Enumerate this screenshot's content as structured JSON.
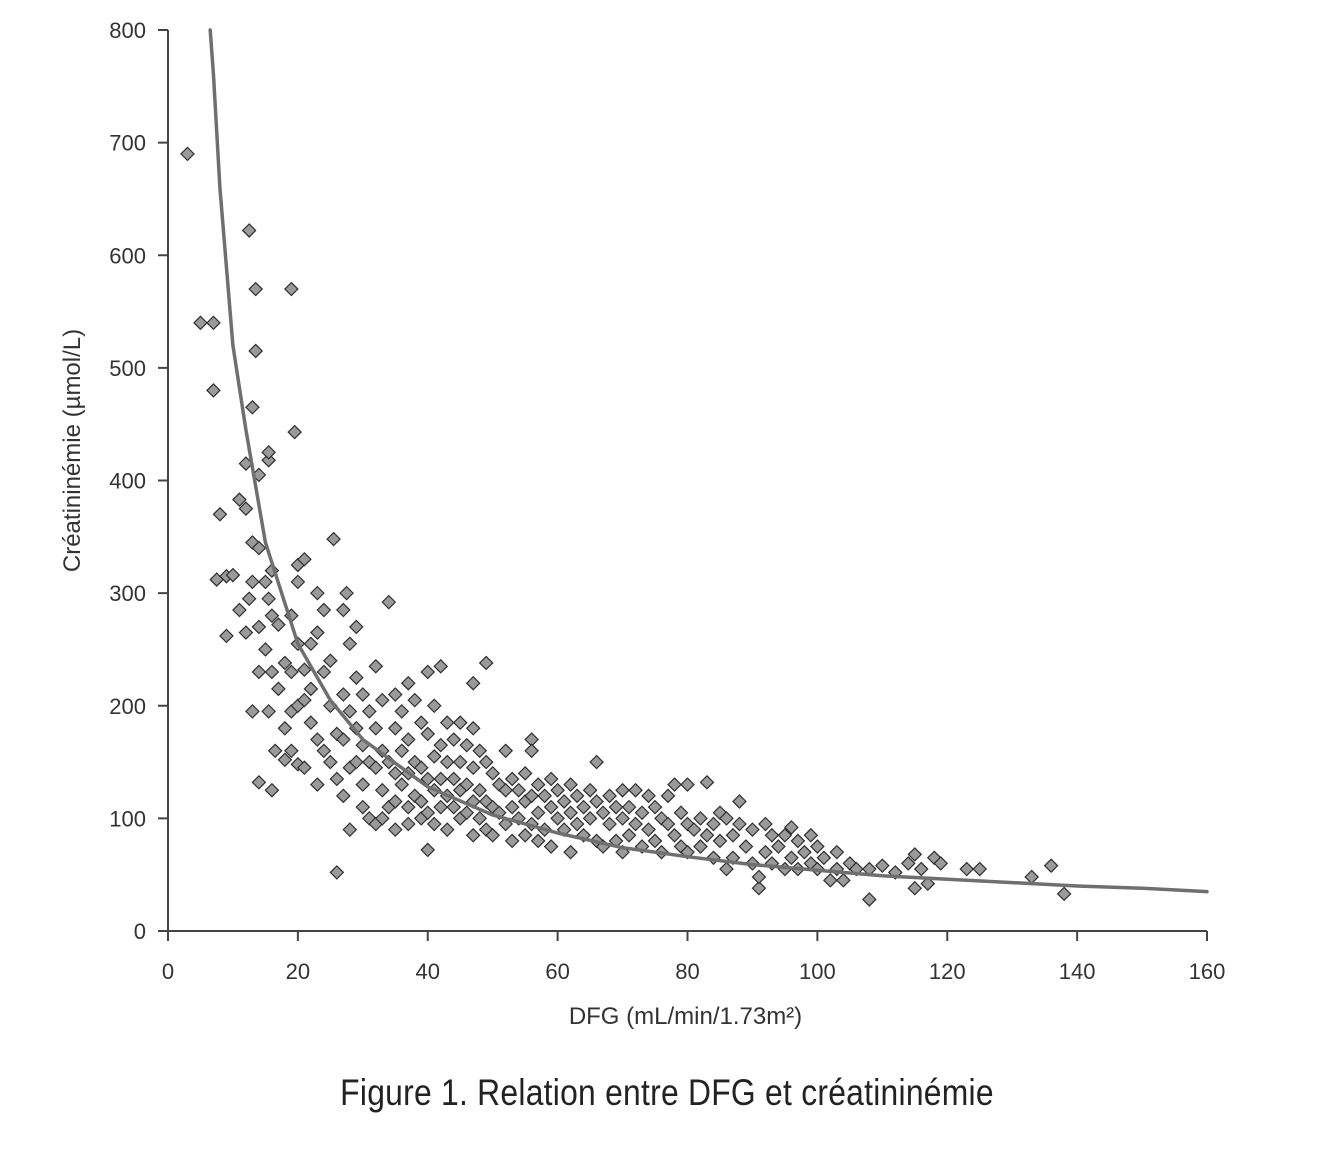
{
  "caption": "Figure 1. Relation entre DFG et créatininémie",
  "colors": {
    "marker_fill": "#9a9a9a",
    "marker_stroke": "#2f2f2f",
    "curve": "#6f6f6f",
    "axis": "#444444"
  },
  "chart_data": {
    "type": "scatter",
    "title": "",
    "xlabel": "DFG (mL/min/1.73m²)",
    "ylabel": "Créatininémie (µmol/L)",
    "xlim": [
      0,
      160
    ],
    "ylim": [
      0,
      800
    ],
    "x_ticks": [
      0,
      20,
      40,
      60,
      80,
      100,
      120,
      140,
      160
    ],
    "y_ticks": [
      0,
      100,
      200,
      300,
      400,
      500,
      600,
      700,
      800
    ],
    "grid": false,
    "legend": "none",
    "marker": "diamond",
    "points": [
      [
        3,
        690
      ],
      [
        5,
        540
      ],
      [
        7,
        540
      ],
      [
        7,
        480
      ],
      [
        7.5,
        312
      ],
      [
        8,
        370
      ],
      [
        9,
        262
      ],
      [
        9,
        315
      ],
      [
        10,
        316
      ],
      [
        11,
        285
      ],
      [
        11,
        383
      ],
      [
        12,
        375
      ],
      [
        12,
        415
      ],
      [
        12,
        265
      ],
      [
        12.5,
        295
      ],
      [
        12.5,
        622
      ],
      [
        13,
        465
      ],
      [
        13,
        345
      ],
      [
        13,
        310
      ],
      [
        13,
        195
      ],
      [
        13.5,
        515
      ],
      [
        13.5,
        570
      ],
      [
        14,
        405
      ],
      [
        14,
        340
      ],
      [
        14,
        270
      ],
      [
        14,
        230
      ],
      [
        14,
        132
      ],
      [
        15,
        250
      ],
      [
        15,
        310
      ],
      [
        15.5,
        418
      ],
      [
        15.5,
        425
      ],
      [
        15.5,
        295
      ],
      [
        15.5,
        195
      ],
      [
        16,
        320
      ],
      [
        16,
        280
      ],
      [
        16,
        230
      ],
      [
        16,
        125
      ],
      [
        16.5,
        160
      ],
      [
        17,
        272
      ],
      [
        17,
        215
      ],
      [
        18,
        238
      ],
      [
        18,
        180
      ],
      [
        18,
        152
      ],
      [
        19,
        570
      ],
      [
        19,
        280
      ],
      [
        19,
        230
      ],
      [
        19,
        195
      ],
      [
        19,
        160
      ],
      [
        19.5,
        443
      ],
      [
        20,
        325
      ],
      [
        20,
        310
      ],
      [
        20,
        255
      ],
      [
        20,
        200
      ],
      [
        20,
        148
      ],
      [
        21,
        330
      ],
      [
        21,
        232
      ],
      [
        21,
        205
      ],
      [
        21,
        145
      ],
      [
        22,
        255
      ],
      [
        22,
        215
      ],
      [
        22,
        185
      ],
      [
        23,
        300
      ],
      [
        23,
        265
      ],
      [
        23,
        170
      ],
      [
        23,
        130
      ],
      [
        24,
        285
      ],
      [
        24,
        230
      ],
      [
        24,
        160
      ],
      [
        25,
        240
      ],
      [
        25,
        200
      ],
      [
        25,
        150
      ],
      [
        25.5,
        348
      ],
      [
        26,
        52
      ],
      [
        26,
        175
      ],
      [
        26,
        135
      ],
      [
        27,
        285
      ],
      [
        27,
        210
      ],
      [
        27,
        170
      ],
      [
        27,
        120
      ],
      [
        27.5,
        300
      ],
      [
        28,
        255
      ],
      [
        28,
        90
      ],
      [
        28,
        195
      ],
      [
        28,
        145
      ],
      [
        29,
        270
      ],
      [
        29,
        225
      ],
      [
        29,
        180
      ],
      [
        29,
        150
      ],
      [
        30,
        210
      ],
      [
        30,
        165
      ],
      [
        30,
        130
      ],
      [
        30,
        110
      ],
      [
        31,
        195
      ],
      [
        31,
        150
      ],
      [
        31,
        100
      ],
      [
        32,
        235
      ],
      [
        32,
        180
      ],
      [
        32,
        145
      ],
      [
        32,
        95
      ],
      [
        33,
        205
      ],
      [
        33,
        160
      ],
      [
        33,
        125
      ],
      [
        33,
        100
      ],
      [
        34,
        292
      ],
      [
        34,
        150
      ],
      [
        34,
        110
      ],
      [
        35,
        210
      ],
      [
        35,
        180
      ],
      [
        35,
        140
      ],
      [
        35,
        115
      ],
      [
        35,
        90
      ],
      [
        36,
        195
      ],
      [
        36,
        160
      ],
      [
        36,
        130
      ],
      [
        37,
        220
      ],
      [
        37,
        170
      ],
      [
        37,
        140
      ],
      [
        37,
        110
      ],
      [
        37,
        95
      ],
      [
        38,
        205
      ],
      [
        38,
        150
      ],
      [
        38,
        120
      ],
      [
        39,
        185
      ],
      [
        39,
        145
      ],
      [
        39,
        115
      ],
      [
        39,
        100
      ],
      [
        40,
        230
      ],
      [
        40,
        175
      ],
      [
        40,
        135
      ],
      [
        40,
        105
      ],
      [
        40,
        72
      ],
      [
        41,
        200
      ],
      [
        41,
        155
      ],
      [
        41,
        125
      ],
      [
        41,
        95
      ],
      [
        42,
        235
      ],
      [
        42,
        165
      ],
      [
        42,
        135
      ],
      [
        42,
        110
      ],
      [
        43,
        185
      ],
      [
        43,
        150
      ],
      [
        43,
        120
      ],
      [
        43,
        90
      ],
      [
        44,
        170
      ],
      [
        44,
        135
      ],
      [
        44,
        110
      ],
      [
        45,
        185
      ],
      [
        45,
        150
      ],
      [
        45,
        125
      ],
      [
        45,
        100
      ],
      [
        46,
        165
      ],
      [
        46,
        130
      ],
      [
        46,
        105
      ],
      [
        47,
        220
      ],
      [
        47,
        180
      ],
      [
        47,
        145
      ],
      [
        47,
        115
      ],
      [
        47,
        85
      ],
      [
        48,
        160
      ],
      [
        48,
        125
      ],
      [
        48,
        100
      ],
      [
        49,
        238
      ],
      [
        49,
        150
      ],
      [
        49,
        115
      ],
      [
        49,
        90
      ],
      [
        50,
        140
      ],
      [
        50,
        110
      ],
      [
        50,
        85
      ],
      [
        51,
        130
      ],
      [
        51,
        105
      ],
      [
        52,
        160
      ],
      [
        52,
        125
      ],
      [
        52,
        95
      ],
      [
        53,
        135
      ],
      [
        53,
        110
      ],
      [
        53,
        80
      ],
      [
        54,
        125
      ],
      [
        54,
        100
      ],
      [
        55,
        140
      ],
      [
        55,
        115
      ],
      [
        55,
        85
      ],
      [
        56,
        170
      ],
      [
        56,
        160
      ],
      [
        56,
        120
      ],
      [
        56,
        95
      ],
      [
        57,
        130
      ],
      [
        57,
        105
      ],
      [
        57,
        80
      ],
      [
        58,
        120
      ],
      [
        58,
        90
      ],
      [
        59,
        135
      ],
      [
        59,
        110
      ],
      [
        59,
        75
      ],
      [
        60,
        125
      ],
      [
        60,
        100
      ],
      [
        61,
        115
      ],
      [
        61,
        90
      ],
      [
        62,
        130
      ],
      [
        62,
        105
      ],
      [
        62,
        70
      ],
      [
        63,
        120
      ],
      [
        63,
        95
      ],
      [
        64,
        110
      ],
      [
        64,
        85
      ],
      [
        65,
        125
      ],
      [
        65,
        100
      ],
      [
        66,
        150
      ],
      [
        66,
        115
      ],
      [
        66,
        80
      ],
      [
        67,
        105
      ],
      [
        67,
        75
      ],
      [
        68,
        120
      ],
      [
        68,
        95
      ],
      [
        69,
        110
      ],
      [
        69,
        80
      ],
      [
        70,
        125
      ],
      [
        70,
        100
      ],
      [
        70,
        70
      ],
      [
        71,
        110
      ],
      [
        71,
        85
      ],
      [
        72,
        125
      ],
      [
        72,
        95
      ],
      [
        73,
        105
      ],
      [
        73,
        75
      ],
      [
        74,
        120
      ],
      [
        74,
        90
      ],
      [
        75,
        110
      ],
      [
        75,
        80
      ],
      [
        76,
        100
      ],
      [
        76,
        70
      ],
      [
        77,
        120
      ],
      [
        77,
        95
      ],
      [
        78,
        130
      ],
      [
        78,
        85
      ],
      [
        79,
        105
      ],
      [
        79,
        75
      ],
      [
        80,
        130
      ],
      [
        80,
        95
      ],
      [
        80,
        70
      ],
      [
        81,
        90
      ],
      [
        82,
        100
      ],
      [
        82,
        75
      ],
      [
        83,
        132
      ],
      [
        83,
        85
      ],
      [
        84,
        95
      ],
      [
        84,
        65
      ],
      [
        85,
        105
      ],
      [
        85,
        80
      ],
      [
        86,
        55
      ],
      [
        86,
        100
      ],
      [
        87,
        85
      ],
      [
        87,
        65
      ],
      [
        88,
        115
      ],
      [
        88,
        95
      ],
      [
        89,
        75
      ],
      [
        90,
        90
      ],
      [
        90,
        60
      ],
      [
        91,
        38
      ],
      [
        91,
        48
      ],
      [
        92,
        95
      ],
      [
        92,
        70
      ],
      [
        93,
        85
      ],
      [
        93,
        60
      ],
      [
        94,
        75
      ],
      [
        95,
        85
      ],
      [
        95,
        55
      ],
      [
        96,
        92
      ],
      [
        96,
        65
      ],
      [
        97,
        80
      ],
      [
        97,
        55
      ],
      [
        98,
        70
      ],
      [
        99,
        85
      ],
      [
        99,
        60
      ],
      [
        100,
        75
      ],
      [
        100,
        55
      ],
      [
        101,
        65
      ],
      [
        102,
        45
      ],
      [
        103,
        70
      ],
      [
        103,
        55
      ],
      [
        104,
        45
      ],
      [
        105,
        60
      ],
      [
        106,
        55
      ],
      [
        108,
        28
      ],
      [
        108,
        55
      ],
      [
        110,
        58
      ],
      [
        112,
        52
      ],
      [
        114,
        60
      ],
      [
        115,
        38
      ],
      [
        115,
        68
      ],
      [
        116,
        55
      ],
      [
        117,
        42
      ],
      [
        118,
        65
      ],
      [
        119,
        60
      ],
      [
        123,
        55
      ],
      [
        125,
        55
      ],
      [
        133,
        48
      ],
      [
        136,
        58
      ],
      [
        138,
        33
      ]
    ],
    "trend_curve": {
      "type": "power",
      "label": "",
      "points": [
        [
          6.5,
          800
        ],
        [
          7,
          760
        ],
        [
          8,
          660
        ],
        [
          10,
          520
        ],
        [
          12,
          445
        ],
        [
          15,
          345
        ],
        [
          20,
          255
        ],
        [
          25,
          205
        ],
        [
          30,
          170
        ],
        [
          40,
          128
        ],
        [
          50,
          103
        ],
        [
          60,
          87
        ],
        [
          70,
          74
        ],
        [
          80,
          66
        ],
        [
          90,
          59
        ],
        [
          100,
          54
        ],
        [
          110,
          49
        ],
        [
          120,
          46
        ],
        [
          130,
          43
        ],
        [
          140,
          40
        ],
        [
          150,
          38
        ],
        [
          160,
          35
        ]
      ]
    }
  }
}
